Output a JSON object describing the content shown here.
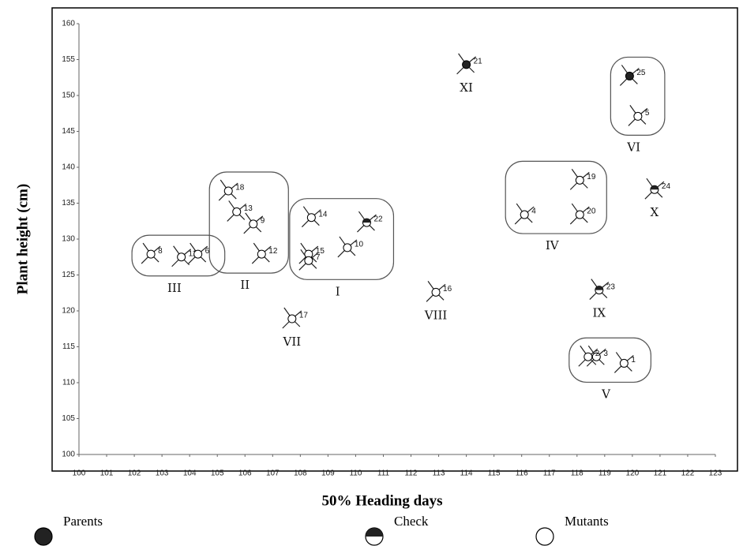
{
  "chart_data": {
    "type": "scatter",
    "xlabel": "50% Heading days",
    "ylabel": "Plant height (cm)",
    "xlim": [
      100,
      123
    ],
    "ylim": [
      100,
      160
    ],
    "xticks": [
      100,
      101,
      102,
      103,
      104,
      105,
      106,
      107,
      108,
      109,
      110,
      111,
      112,
      113,
      114,
      115,
      116,
      117,
      118,
      119,
      120,
      121,
      122,
      123
    ],
    "yticks": [
      100,
      105,
      110,
      115,
      120,
      125,
      130,
      135,
      140,
      145,
      150,
      155,
      160
    ],
    "series": [
      {
        "name": "Parents",
        "marker": "filled",
        "labels": [
          "21",
          "25"
        ],
        "x": [
          114.0,
          119.9
        ],
        "y": [
          154.3,
          152.7
        ]
      },
      {
        "name": "Check",
        "marker": "half",
        "labels": [
          "24",
          "23",
          "22"
        ],
        "x": [
          120.8,
          118.8,
          110.4
        ],
        "y": [
          136.9,
          122.9,
          132.3
        ]
      },
      {
        "name": "Mutants",
        "marker": "open",
        "labels": [
          "5",
          "19",
          "20",
          "4",
          "3",
          "2",
          "1",
          "16",
          "14",
          "15",
          "7",
          "10",
          "17",
          "18",
          "13",
          "9",
          "12",
          "8",
          "11",
          "6"
        ],
        "x": [
          120.2,
          118.1,
          118.1,
          116.1,
          118.7,
          118.4,
          119.7,
          112.9,
          108.4,
          108.3,
          108.3,
          109.7,
          107.7,
          105.4,
          105.7,
          106.3,
          106.6,
          102.6,
          103.7,
          104.3
        ],
        "y": [
          147.1,
          138.2,
          133.4,
          133.4,
          113.6,
          113.6,
          112.7,
          122.6,
          133.0,
          127.9,
          127.0,
          128.8,
          118.9,
          136.7,
          133.8,
          132.1,
          127.9,
          127.9,
          127.5,
          127.9
        ]
      }
    ],
    "clusters": [
      {
        "name": "I",
        "members": [
          "14",
          "15",
          "7",
          "10",
          "22"
        ]
      },
      {
        "name": "II",
        "members": [
          "18",
          "13",
          "9",
          "12"
        ]
      },
      {
        "name": "III",
        "members": [
          "8",
          "11",
          "6"
        ]
      },
      {
        "name": "IV",
        "members": [
          "4",
          "19",
          "20"
        ]
      },
      {
        "name": "V",
        "members": [
          "2",
          "3",
          "1"
        ]
      },
      {
        "name": "VI",
        "members": [
          "25",
          "5"
        ]
      },
      {
        "name": "VII",
        "members": [
          "17"
        ]
      },
      {
        "name": "VIII",
        "members": [
          "16"
        ]
      },
      {
        "name": "IX",
        "members": [
          "23"
        ]
      },
      {
        "name": "X",
        "members": [
          "24"
        ]
      },
      {
        "name": "XI",
        "members": [
          "21"
        ]
      }
    ]
  }
}
